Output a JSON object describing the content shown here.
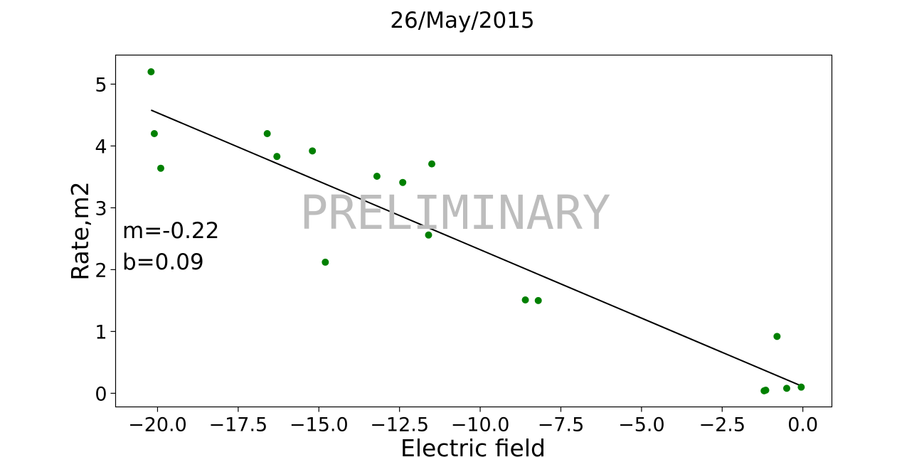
{
  "chart_data": {
    "type": "scatter",
    "title": "26/May/2015",
    "xlabel": "Electric field",
    "ylabel": "Rate,m2",
    "xlim": [
      -21.3,
      0.9
    ],
    "ylim": [
      -0.22,
      5.47
    ],
    "xticks": [
      -20.0,
      -17.5,
      -15.0,
      -12.5,
      -10.0,
      -7.5,
      -5.0,
      -2.5,
      0.0
    ],
    "xtick_labels": [
      "−20.0",
      "−17.5",
      "−15.0",
      "−12.5",
      "−10.0",
      "−7.5",
      "−5.0",
      "−2.5",
      "0.0"
    ],
    "yticks": [
      0,
      1,
      2,
      3,
      4,
      5
    ],
    "ytick_labels": [
      "0",
      "1",
      "2",
      "3",
      "4",
      "5"
    ],
    "grid": false,
    "points": {
      "color": "#008000",
      "x": [
        -20.2,
        -20.1,
        -19.9,
        -16.6,
        -16.3,
        -15.2,
        -14.8,
        -13.2,
        -12.4,
        -11.6,
        -11.5,
        -8.6,
        -8.2,
        -1.2,
        -1.15,
        -0.8,
        -0.5,
        -0.05
      ],
      "y": [
        5.2,
        4.2,
        3.64,
        4.2,
        3.83,
        3.92,
        2.12,
        3.51,
        3.41,
        2.56,
        3.71,
        1.51,
        1.5,
        0.04,
        0.05,
        0.92,
        0.08,
        0.1
      ]
    },
    "fit_line": {
      "color": "#000000",
      "x": [
        -20.2,
        -0.05
      ],
      "y": [
        4.58,
        0.12
      ]
    },
    "annotations": [
      "m=-0.22",
      "b=0.09"
    ],
    "watermark": "PRELIMINARY"
  }
}
